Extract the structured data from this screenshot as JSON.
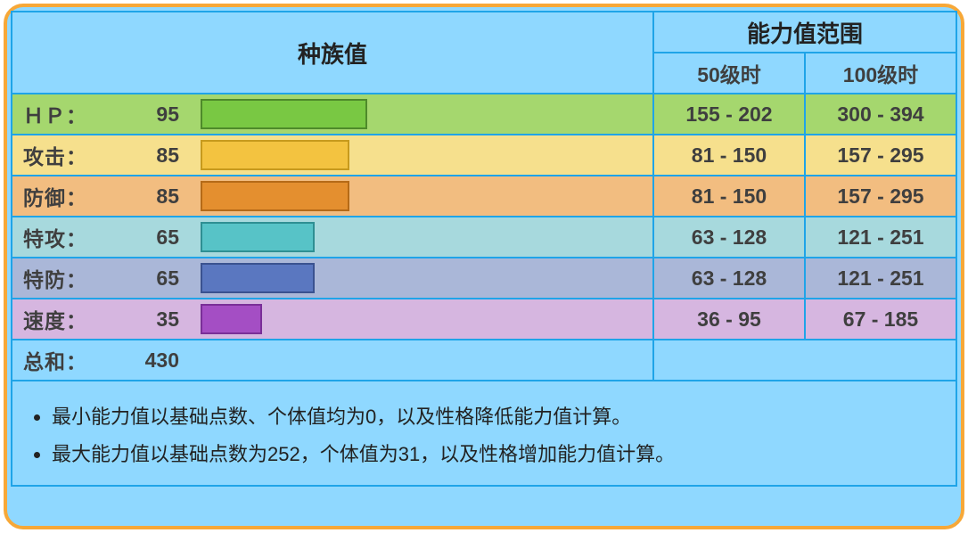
{
  "header": {
    "base_stats": "种族值",
    "stat_ranges": "能力值范围",
    "lv50": "50级时",
    "lv100": "100级时"
  },
  "max_stat_scale": 255,
  "stats": [
    {
      "key": "hp",
      "label": "ＨＰ：",
      "value": 95,
      "row_bg": "#a5d76e",
      "bar_fill": "#79c843",
      "bar_border": "#4e8a2a",
      "range50": "155 - 202",
      "range100": "300 - 394"
    },
    {
      "key": "atk",
      "label": "攻击：",
      "value": 85,
      "row_bg": "#f6e08d",
      "bar_fill": "#f3c340",
      "bar_border": "#c79a1d",
      "range50": "81 - 150",
      "range100": "157 - 295"
    },
    {
      "key": "def",
      "label": "防御：",
      "value": 85,
      "row_bg": "#f2bd80",
      "bar_fill": "#e48f2f",
      "bar_border": "#b56a17",
      "range50": "81 - 150",
      "range100": "157 - 295"
    },
    {
      "key": "spa",
      "label": "特攻：",
      "value": 65,
      "row_bg": "#a7d9dd",
      "bar_fill": "#57c3c7",
      "bar_border": "#2e8f93",
      "range50": "63 - 128",
      "range100": "121 - 251"
    },
    {
      "key": "spd",
      "label": "特防：",
      "value": 65,
      "row_bg": "#aab7d8",
      "bar_fill": "#5a77c0",
      "bar_border": "#3a5290",
      "range50": "63 - 128",
      "range100": "121 - 251"
    },
    {
      "key": "spe",
      "label": "速度：",
      "value": 35,
      "row_bg": "#d6b6e0",
      "bar_fill": "#a44ec4",
      "bar_border": "#7a2f98",
      "range50": "36 - 95",
      "range100": "67 - 185"
    }
  ],
  "total": {
    "label": "总和：",
    "value": 430
  },
  "footnotes": [
    "最小能力值以基础点数、个体值均为0，以及性格降低能力值计算。",
    "最大能力值以基础点数为252，个体值为31，以及性格增加能力值计算。"
  ]
}
